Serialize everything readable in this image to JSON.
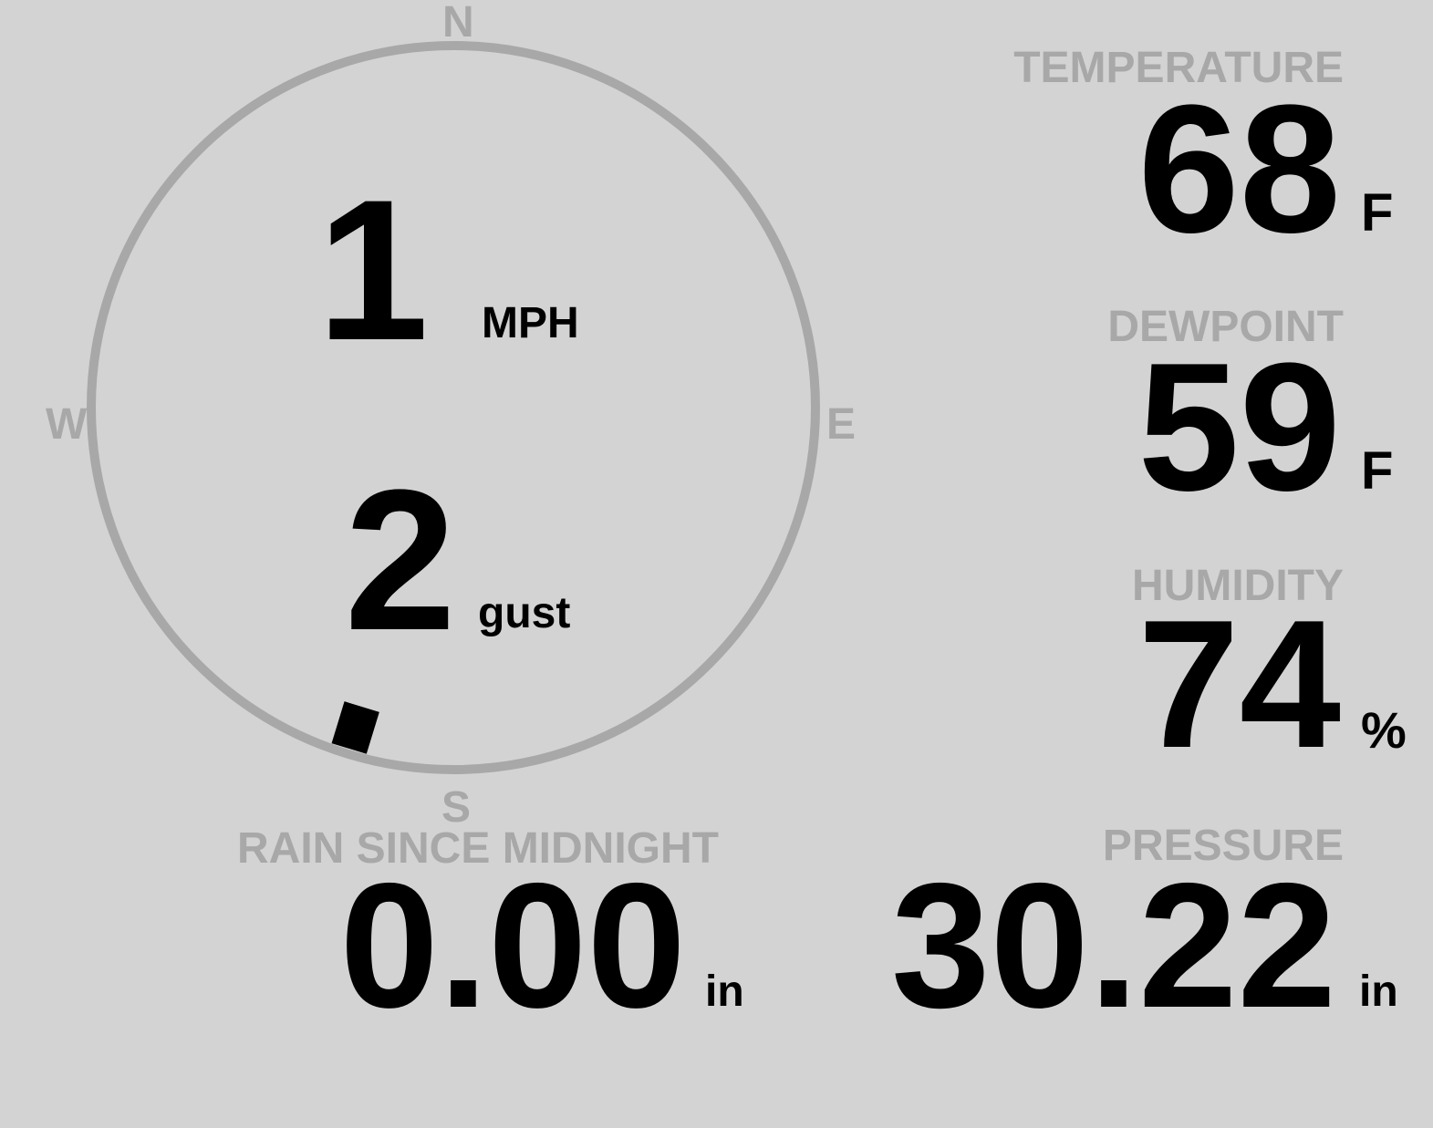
{
  "colors": {
    "background": "#d3d3d3",
    "label": "#a8a8a8",
    "value": "#000000",
    "compass_ring": "#a8a8a8",
    "direction_marker": "#000000"
  },
  "wind": {
    "compass": {
      "north": "N",
      "east": "E",
      "south": "S",
      "west": "W"
    },
    "direction_degrees": 197,
    "speed": "1",
    "speed_unit": "MPH",
    "gust": "2",
    "gust_label": "gust"
  },
  "temperature": {
    "label": "TEMPERATURE",
    "value": "68",
    "unit": "F"
  },
  "dewpoint": {
    "label": "DEWPOINT",
    "value": "59",
    "unit": "F"
  },
  "humidity": {
    "label": "HUMIDITY",
    "value": "74",
    "unit": "%"
  },
  "pressure": {
    "label": "PRESSURE",
    "value": "30.22",
    "unit": "in"
  },
  "rain": {
    "label": "RAIN SINCE MIDNIGHT",
    "value": "0.00",
    "unit": "in"
  }
}
